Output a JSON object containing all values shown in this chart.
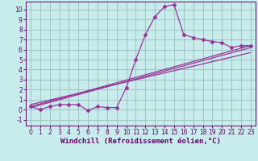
{
  "title": "",
  "xlabel": "Windchill (Refroidissement éolien,°C)",
  "ylabel": "",
  "bg_color": "#c8ecec",
  "line_color": "#993399",
  "grid_color": "#99bbbb",
  "xlim": [
    -0.5,
    23.5
  ],
  "ylim": [
    -1.6,
    10.8
  ],
  "xticks": [
    0,
    1,
    2,
    3,
    4,
    5,
    6,
    7,
    8,
    9,
    10,
    11,
    12,
    13,
    14,
    15,
    16,
    17,
    18,
    19,
    20,
    21,
    22,
    23
  ],
  "yticks": [
    -1,
    0,
    1,
    2,
    3,
    4,
    5,
    6,
    7,
    8,
    9,
    10
  ],
  "series1_x": [
    0,
    1,
    2,
    3,
    4,
    5,
    6,
    7,
    8,
    9,
    10,
    11,
    12,
    13,
    14,
    15,
    16,
    17,
    18,
    19,
    20,
    21,
    22,
    23
  ],
  "series1_y": [
    0.3,
    0.0,
    0.3,
    0.5,
    0.5,
    0.5,
    -0.1,
    0.3,
    0.2,
    0.2,
    2.2,
    5.0,
    7.5,
    9.3,
    10.3,
    10.5,
    7.5,
    7.2,
    7.0,
    6.8,
    6.7,
    6.2,
    6.4,
    6.4
  ],
  "line1_x0": 0,
  "line1_y0": 0.3,
  "line1_x1": 23,
  "line1_y1": 6.4,
  "line2_x0": 0,
  "line2_y0": 0.2,
  "line2_x1": 23,
  "line2_y1": 6.2,
  "line3_x0": 0,
  "line3_y0": 0.5,
  "line3_x1": 23,
  "line3_y1": 5.7,
  "figwidth": 3.2,
  "figheight": 2.0,
  "dpi": 100,
  "tick_fontsize": 5.5,
  "xlabel_fontsize": 6.5
}
